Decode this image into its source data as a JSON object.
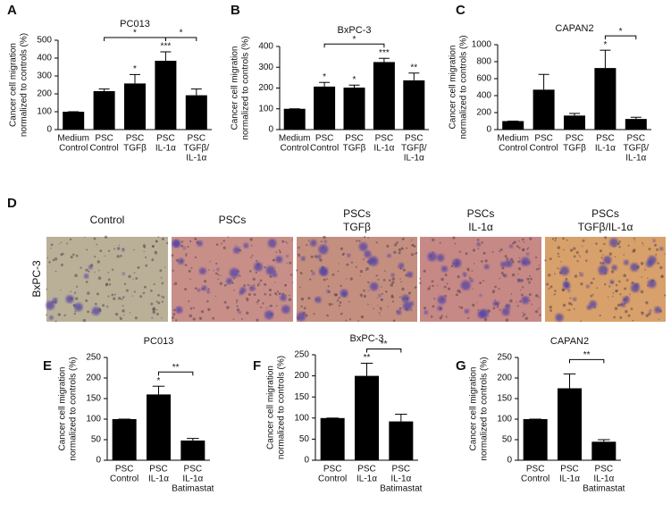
{
  "chart_data": [
    {
      "type": "bar",
      "panel": "A",
      "title": "PC013",
      "ylabel": [
        "Cancer cell migration",
        "normalized to controls (%)"
      ],
      "categories": [
        [
          "Medium",
          "Control"
        ],
        [
          "PSC",
          "Control"
        ],
        [
          "PSC",
          "TGFβ"
        ],
        [
          "PSC",
          "IL-1α"
        ],
        [
          "PSC",
          "TGFβ/",
          "IL-1α"
        ]
      ],
      "values": [
        100,
        215,
        258,
        385,
        192
      ],
      "errors": [
        0,
        12,
        50,
        50,
        35
      ],
      "color": "#000000",
      "bar_labels": [
        null,
        null,
        "*",
        "***",
        null
      ],
      "brackets": [
        {
          "between": [
            1,
            3
          ],
          "label": "*"
        },
        {
          "between": [
            3,
            4
          ],
          "label": "*"
        }
      ],
      "ylim": [
        0,
        500
      ],
      "yticks": [
        0,
        100,
        200,
        300,
        400,
        500
      ]
    },
    {
      "type": "bar",
      "panel": "B",
      "title": "BxPC-3",
      "ylabel": [
        "Cancer cell migration",
        "normalized to controls (%)"
      ],
      "categories": [
        [
          "Medium",
          "Control"
        ],
        [
          "PSC",
          "Control"
        ],
        [
          "PSC",
          "TGFβ"
        ],
        [
          "PSC",
          "IL-1α"
        ],
        [
          "PSC",
          "TGFβ/",
          "IL-1α"
        ]
      ],
      "values": [
        100,
        207,
        202,
        325,
        237
      ],
      "errors": [
        0,
        20,
        12,
        18,
        35
      ],
      "color": "#000000",
      "bar_labels": [
        null,
        "*",
        "*",
        "***",
        "**"
      ],
      "brackets": [
        {
          "between": [
            1,
            3
          ],
          "label": "*"
        }
      ],
      "ylim": [
        0,
        400
      ],
      "yticks": [
        0,
        100,
        200,
        300,
        400
      ]
    },
    {
      "type": "bar",
      "panel": "C",
      "title": "CAPAN2",
      "ylabel": [
        "Cancer cell migration",
        "normalized to controls (%)"
      ],
      "categories": [
        [
          "Medium",
          "Control"
        ],
        [
          "PSC",
          "Control"
        ],
        [
          "PSC",
          "TGFβ"
        ],
        [
          "PSC",
          "IL-1α"
        ],
        [
          "PSC",
          "TGFβ/",
          "IL-1α"
        ]
      ],
      "values": [
        100,
        470,
        165,
        725,
        125
      ],
      "errors": [
        0,
        180,
        25,
        210,
        20
      ],
      "color": "#000000",
      "bar_labels": [
        null,
        null,
        null,
        "*",
        null
      ],
      "brackets": [
        {
          "between": [
            3,
            4
          ],
          "label": "*"
        }
      ],
      "ylim": [
        0,
        1000
      ],
      "yticks": [
        0,
        200,
        400,
        600,
        800,
        1000
      ]
    },
    {
      "type": "bar",
      "panel": "E",
      "title": "PC013",
      "ylabel": [
        "Cancer cell migration",
        "normalized to controls (%)"
      ],
      "categories": [
        [
          "PSC",
          "Control"
        ],
        [
          "PSC",
          "IL-1α"
        ],
        [
          "PSC",
          "IL-1α",
          "Batimastat"
        ]
      ],
      "values": [
        100,
        160,
        48
      ],
      "errors": [
        0,
        20,
        5
      ],
      "color": "#000000",
      "bar_labels": [
        null,
        "*",
        null
      ],
      "brackets": [
        {
          "between": [
            1,
            2
          ],
          "label": "**"
        }
      ],
      "ylim": [
        0,
        250
      ],
      "yticks": [
        0,
        50,
        100,
        150,
        200,
        250
      ]
    },
    {
      "type": "bar",
      "panel": "F",
      "title": "BxPC-3",
      "ylabel": [
        "Cancer cell migration",
        "normalized to controls (%)"
      ],
      "categories": [
        [
          "PSC",
          "Control"
        ],
        [
          "PSC",
          "IL-1α"
        ],
        [
          "PSC",
          "IL-1α",
          "Batimastat"
        ]
      ],
      "values": [
        100,
        200,
        92
      ],
      "errors": [
        0,
        30,
        17
      ],
      "color": "#000000",
      "bar_labels": [
        null,
        "**",
        null
      ],
      "brackets": [
        {
          "between": [
            1,
            2
          ],
          "label": "**"
        }
      ],
      "ylim": [
        0,
        250
      ],
      "yticks": [
        0,
        50,
        100,
        150,
        200,
        250
      ]
    },
    {
      "type": "bar",
      "panel": "G",
      "title": "CAPAN2",
      "ylabel": [
        "Cancer cell migration",
        "normalized to controls (%)"
      ],
      "categories": [
        [
          "PSC",
          "Control"
        ],
        [
          "PSC",
          "IL-1α"
        ],
        [
          "PSC",
          "IL-1α",
          "Batimastat"
        ]
      ],
      "values": [
        100,
        175,
        45
      ],
      "errors": [
        0,
        35,
        5
      ],
      "color": "#000000",
      "bar_labels": [
        null,
        null,
        null
      ],
      "brackets": [
        {
          "between": [
            1,
            2
          ],
          "label": "**"
        }
      ],
      "ylim": [
        0,
        250
      ],
      "yticks": [
        0,
        50,
        100,
        150,
        200,
        250
      ]
    }
  ],
  "panel_d": {
    "letter": "D",
    "row_label": "BxPC-3",
    "columns": [
      [
        "Control"
      ],
      [
        "PSCs"
      ],
      [
        "PSCs",
        "TGFβ"
      ],
      [
        "PSCs",
        "IL-1α"
      ],
      [
        "PSCs",
        "TGFβ/IL-1α"
      ]
    ]
  }
}
